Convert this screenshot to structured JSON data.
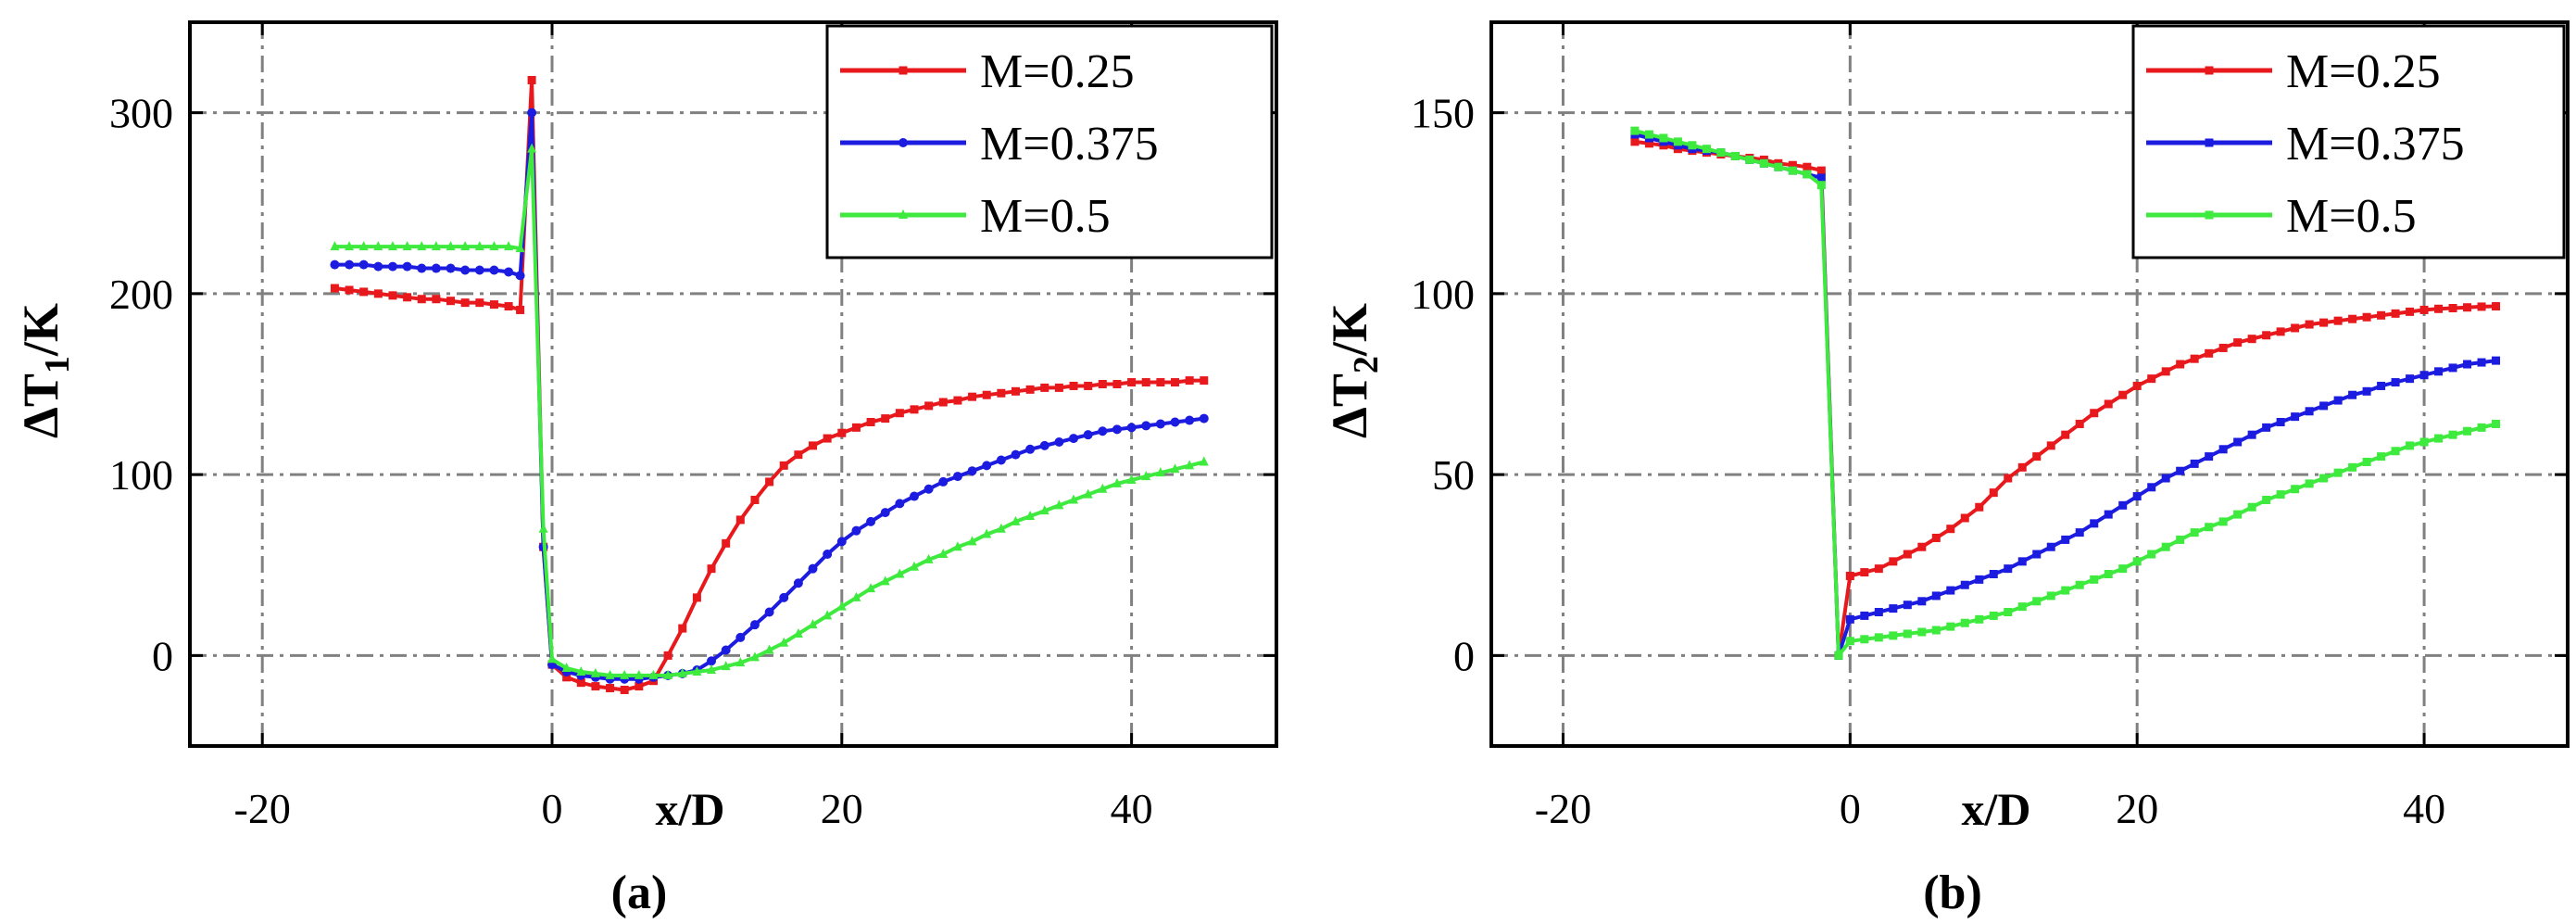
{
  "chart_data": [
    {
      "type": "line",
      "panel_label": "(a)",
      "xlabel": "x/D",
      "ylabel_main": "ΔT",
      "ylabel_sub": "1",
      "ylabel_tail": "/K",
      "xlim": [
        -25,
        50
      ],
      "ylim": [
        -50,
        350
      ],
      "xticks": [
        -20,
        0,
        20,
        40
      ],
      "yticks": [
        0,
        100,
        200,
        300
      ],
      "grid": true,
      "legend_position": "top-right",
      "series": [
        {
          "name": "M=0.25",
          "color": "#e8191c",
          "marker": "square",
          "x": [
            -15,
            -14,
            -13,
            -12,
            -11,
            -10,
            -9,
            -8,
            -7,
            -6,
            -5,
            -4,
            -3,
            -2.2,
            -1.4,
            -0.6,
            0,
            1,
            2,
            3,
            4,
            5,
            6,
            7,
            8,
            9,
            10,
            11,
            12,
            13,
            14,
            15,
            16,
            17,
            18,
            19,
            20,
            21,
            22,
            23,
            24,
            25,
            26,
            27,
            28,
            29,
            30,
            31,
            32,
            33,
            34,
            35,
            36,
            37,
            38,
            39,
            40,
            41,
            42,
            43,
            44,
            45
          ],
          "y": [
            203,
            202,
            201,
            200,
            199,
            198,
            197,
            197,
            196,
            195,
            195,
            194,
            193,
            191,
            318,
            60,
            -5,
            -12,
            -15,
            -17,
            -18,
            -19,
            -17,
            -14,
            0,
            15,
            32,
            48,
            62,
            75,
            86,
            96,
            105,
            111,
            116,
            120,
            123,
            126,
            129,
            131,
            134,
            136,
            138,
            140,
            141,
            143,
            144,
            145,
            146,
            147,
            148,
            148,
            149,
            149,
            150,
            150,
            151,
            151,
            151,
            151,
            152,
            152
          ]
        },
        {
          "name": "M=0.375",
          "color": "#1c1ce0",
          "marker": "circle",
          "x": [
            -15,
            -14,
            -13,
            -12,
            -11,
            -10,
            -9,
            -8,
            -7,
            -6,
            -5,
            -4,
            -3,
            -2.2,
            -1.4,
            -0.6,
            0,
            1,
            2,
            3,
            4,
            5,
            6,
            7,
            8,
            9,
            10,
            11,
            12,
            13,
            14,
            15,
            16,
            17,
            18,
            19,
            20,
            21,
            22,
            23,
            24,
            25,
            26,
            27,
            28,
            29,
            30,
            31,
            32,
            33,
            34,
            35,
            36,
            37,
            38,
            39,
            40,
            41,
            42,
            43,
            44,
            45
          ],
          "y": [
            216,
            216,
            216,
            215,
            215,
            215,
            214,
            214,
            214,
            213,
            213,
            213,
            212,
            210,
            300,
            60,
            -5,
            -9,
            -11,
            -12,
            -13,
            -13,
            -13,
            -12,
            -11,
            -10,
            -8,
            -3,
            3,
            10,
            17,
            24,
            32,
            40,
            48,
            56,
            63,
            69,
            74,
            79,
            84,
            88,
            92,
            96,
            99,
            102,
            105,
            108,
            111,
            114,
            116,
            118,
            120,
            122,
            124,
            125,
            126,
            127,
            128,
            129,
            130,
            131
          ]
        },
        {
          "name": "M=0.5",
          "color": "#3dea3d",
          "marker": "triangle",
          "x": [
            -15,
            -14,
            -13,
            -12,
            -11,
            -10,
            -9,
            -8,
            -7,
            -6,
            -5,
            -4,
            -3,
            -2.2,
            -1.4,
            -0.6,
            0,
            1,
            2,
            3,
            4,
            5,
            6,
            7,
            8,
            9,
            10,
            11,
            12,
            13,
            14,
            15,
            16,
            17,
            18,
            19,
            20,
            21,
            22,
            23,
            24,
            25,
            26,
            27,
            28,
            29,
            30,
            31,
            32,
            33,
            34,
            35,
            36,
            37,
            38,
            39,
            40,
            41,
            42,
            43,
            44,
            45
          ],
          "y": [
            226,
            226,
            226,
            226,
            226,
            226,
            226,
            226,
            226,
            226,
            226,
            226,
            226,
            225,
            280,
            70,
            -2,
            -7,
            -9,
            -10,
            -11,
            -11,
            -11,
            -11,
            -11,
            -10,
            -9,
            -8,
            -6,
            -4,
            -1,
            3,
            7,
            12,
            17,
            22,
            27,
            32,
            37,
            41,
            45,
            49,
            53,
            56,
            60,
            63,
            67,
            70,
            74,
            77,
            80,
            83,
            86,
            89,
            92,
            95,
            97,
            99,
            101,
            103,
            105,
            107
          ]
        }
      ]
    },
    {
      "type": "line",
      "panel_label": "(b)",
      "xlabel": "x/D",
      "ylabel_main": "ΔT",
      "ylabel_sub": "2",
      "ylabel_tail": "/K",
      "xlim": [
        -25,
        50
      ],
      "ylim": [
        -25,
        175
      ],
      "xticks": [
        -20,
        0,
        20,
        40
      ],
      "yticks": [
        0,
        50,
        100,
        150
      ],
      "grid": true,
      "legend_position": "top-right",
      "series": [
        {
          "name": "M=0.25",
          "color": "#e8191c",
          "marker": "square",
          "x": [
            -15,
            -14,
            -13,
            -12,
            -11,
            -10,
            -9,
            -8,
            -7,
            -6,
            -5,
            -4,
            -3,
            -2,
            -0.8,
            0,
            1,
            2,
            3,
            4,
            5,
            6,
            7,
            8,
            9,
            10,
            11,
            12,
            13,
            14,
            15,
            16,
            17,
            18,
            19,
            20,
            21,
            22,
            23,
            24,
            25,
            26,
            27,
            28,
            29,
            30,
            31,
            32,
            33,
            34,
            35,
            36,
            37,
            38,
            39,
            40,
            41,
            42,
            43,
            44,
            45
          ],
          "y": [
            142,
            141.5,
            141,
            140,
            139.5,
            139,
            138.5,
            138,
            137.5,
            137,
            136,
            135.5,
            135,
            134,
            0,
            22,
            23,
            24,
            26,
            28,
            30,
            32.5,
            35,
            38,
            41,
            45,
            49,
            52,
            55,
            58,
            61,
            64,
            67,
            69.5,
            72,
            74.5,
            76.5,
            78.5,
            80.5,
            82,
            83.5,
            85,
            86.5,
            87.5,
            88.5,
            89.5,
            90.5,
            91.5,
            92,
            92.5,
            93,
            93.5,
            94,
            94.5,
            95,
            95.5,
            95.8,
            96,
            96.2,
            96.4,
            96.5
          ]
        },
        {
          "name": "M=0.375",
          "color": "#1c1ce0",
          "marker": "square",
          "x": [
            -15,
            -14,
            -13,
            -12,
            -11,
            -10,
            -9,
            -8,
            -7,
            -6,
            -5,
            -4,
            -3,
            -2,
            -0.8,
            0,
            1,
            2,
            3,
            4,
            5,
            6,
            7,
            8,
            9,
            10,
            11,
            12,
            13,
            14,
            15,
            16,
            17,
            18,
            19,
            20,
            21,
            22,
            23,
            24,
            25,
            26,
            27,
            28,
            29,
            30,
            31,
            32,
            33,
            34,
            35,
            36,
            37,
            38,
            39,
            40,
            41,
            42,
            43,
            44,
            45
          ],
          "y": [
            144,
            143,
            142,
            141,
            140,
            139.5,
            139,
            138,
            137,
            136,
            135,
            134,
            133,
            132,
            0,
            10,
            11,
            12,
            13,
            14,
            15,
            16.5,
            18,
            19.5,
            21,
            22.5,
            24,
            26,
            28,
            30,
            32,
            34,
            36.5,
            39,
            41.5,
            44,
            46.5,
            49,
            51,
            53,
            55,
            57,
            59,
            61,
            63,
            64.5,
            66,
            67.5,
            69,
            70.5,
            72,
            73,
            74.5,
            75.5,
            76.5,
            77.5,
            78.5,
            79.5,
            80.5,
            81,
            81.5
          ]
        },
        {
          "name": "M=0.5",
          "color": "#3dea3d",
          "marker": "square",
          "x": [
            -15,
            -14,
            -13,
            -12,
            -11,
            -10,
            -9,
            -8,
            -7,
            -6,
            -5,
            -4,
            -3,
            -2,
            -0.8,
            0,
            1,
            2,
            3,
            4,
            5,
            6,
            7,
            8,
            9,
            10,
            11,
            12,
            13,
            14,
            15,
            16,
            17,
            18,
            19,
            20,
            21,
            22,
            23,
            24,
            25,
            26,
            27,
            28,
            29,
            30,
            31,
            32,
            33,
            34,
            35,
            36,
            37,
            38,
            39,
            40,
            41,
            42,
            43,
            44,
            45
          ],
          "y": [
            145,
            144,
            143,
            142,
            141,
            140,
            139,
            138,
            137,
            136,
            135,
            134,
            133,
            130,
            0,
            4,
            4.5,
            5,
            5.5,
            6,
            6.5,
            7,
            8,
            9,
            10,
            11,
            12,
            13.5,
            15,
            16.5,
            18,
            19.5,
            21,
            22.5,
            24,
            26,
            28,
            30,
            32,
            34,
            35.5,
            37,
            39,
            41,
            43,
            44.5,
            46,
            47.5,
            49,
            50.5,
            52,
            53.5,
            55,
            56.5,
            58,
            59,
            60,
            61,
            62,
            63,
            64
          ]
        }
      ]
    }
  ]
}
